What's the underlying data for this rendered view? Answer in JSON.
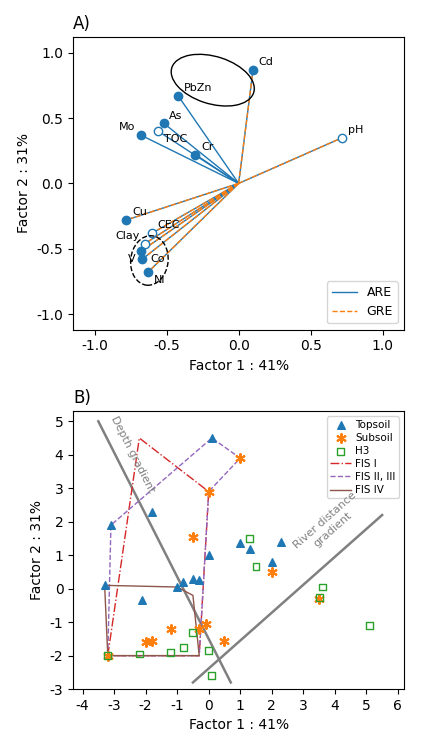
{
  "chart_data": [
    {
      "type": "biplot",
      "title": "A)",
      "xlabel": "Factor 1 : 41%",
      "ylabel": "Factor 2 : 31%",
      "xlim": [
        -1.15,
        1.15
      ],
      "ylim": [
        -1.12,
        1.12
      ],
      "xticks": [
        -1.0,
        -0.5,
        0.0,
        0.5,
        1.0
      ],
      "yticks": [
        -1.0,
        -0.5,
        0.0,
        0.5,
        1.0
      ],
      "legend": "lower right",
      "series": [
        {
          "name": "ARE",
          "type": "vector",
          "line_style": "solid",
          "marker": "circle",
          "labels": [
            "Cd",
            "PbZn",
            "As",
            "Mo",
            "TOC",
            "Cr",
            "pH",
            "Cu",
            "CEC",
            "Clay",
            "V",
            "Co",
            "Ni"
          ],
          "x": [
            0.1,
            -0.42,
            -0.52,
            -0.68,
            -0.56,
            -0.3,
            0.72,
            -0.78,
            -0.6,
            -0.65,
            -0.68,
            -0.67,
            -0.63
          ],
          "y": [
            0.87,
            0.67,
            0.46,
            0.37,
            0.4,
            0.22,
            0.35,
            -0.28,
            -0.38,
            -0.46,
            -0.52,
            -0.58,
            -0.68
          ],
          "open_markers": [
            "TOC",
            "CEC",
            "Clay",
            "pH"
          ]
        },
        {
          "name": "GRE",
          "type": "vector",
          "line_style": "dashed",
          "x": [
            0.1,
            0.72,
            -0.78,
            -0.6,
            -0.65,
            -0.68,
            -0.67,
            -0.63
          ],
          "y": [
            0.87,
            0.35,
            -0.28,
            -0.38,
            -0.46,
            -0.52,
            -0.58,
            -0.68
          ]
        }
      ],
      "ellipses": [
        {
          "x": -0.18,
          "y": 0.79,
          "width": 0.6,
          "height": 0.36,
          "angle": -20,
          "line_style": "solid"
        },
        {
          "x": -0.62,
          "y": -0.59,
          "width": 0.26,
          "height": 0.38,
          "angle": -5,
          "line_style": "dashed"
        }
      ]
    },
    {
      "type": "scatter",
      "title": "B)",
      "xlabel": "Factor 1 : 41%",
      "ylabel": "Factor 2 : 31%",
      "xlim": [
        -4.3,
        6.2
      ],
      "ylim": [
        -3.0,
        5.3
      ],
      "xticks": [
        -4,
        -3,
        -2,
        -1,
        0,
        1,
        2,
        3,
        4,
        5,
        6
      ],
      "yticks": [
        -3,
        -2,
        -1,
        0,
        1,
        2,
        3,
        4,
        5
      ],
      "legend": "upper right",
      "series": [
        {
          "name": "Topsoil",
          "type": "scatter",
          "marker": "triangle",
          "x": [
            -3.3,
            -3.1,
            -2.1,
            -1.8,
            -1.0,
            -0.8,
            -0.5,
            -0.3,
            0.0,
            0.1,
            1.0,
            1.3,
            2.0,
            2.3
          ],
          "y": [
            0.1,
            1.9,
            -0.35,
            2.3,
            0.05,
            0.2,
            0.3,
            0.25,
            1.0,
            4.5,
            1.35,
            1.2,
            0.8,
            1.4
          ]
        },
        {
          "name": "Subsoil",
          "type": "scatter",
          "marker": "asterisk",
          "x": [
            -3.2,
            -2.0,
            -1.8,
            -1.2,
            -0.5,
            -0.3,
            -0.1,
            0.0,
            0.5,
            1.0,
            2.0,
            3.5
          ],
          "y": [
            -2.0,
            -1.6,
            -1.55,
            -1.2,
            1.55,
            -1.2,
            -1.05,
            2.9,
            -1.55,
            3.9,
            0.5,
            -0.3
          ]
        },
        {
          "name": "H3",
          "type": "scatter",
          "marker": "open_square",
          "x": [
            -3.2,
            -2.2,
            -1.2,
            -0.8,
            -0.5,
            0.0,
            0.1,
            1.3,
            1.5,
            3.5,
            3.6,
            5.1
          ],
          "y": [
            -2.0,
            -1.95,
            -1.9,
            -1.75,
            -1.3,
            -1.85,
            -2.6,
            1.5,
            0.65,
            -0.25,
            0.05,
            -1.1
          ]
        },
        {
          "name": "FIS I",
          "type": "polygon",
          "line_style": "dashdot",
          "x": [
            -3.2,
            -2.2,
            0.0,
            -0.3
          ],
          "y": [
            -2.0,
            4.5,
            2.9,
            -2.0
          ]
        },
        {
          "name": "FIS II, III",
          "type": "polygon",
          "line_style": "dashed",
          "x": [
            -3.2,
            -3.1,
            0.1,
            1.0,
            0.0,
            -0.3
          ],
          "y": [
            -2.0,
            1.9,
            4.5,
            3.9,
            2.9,
            -2.0
          ]
        },
        {
          "name": "FIS IV",
          "type": "polygon",
          "line_style": "solid",
          "x": [
            -3.2,
            -3.3,
            -1.0,
            -0.5,
            -0.3
          ],
          "y": [
            -2.0,
            0.1,
            0.05,
            -0.2,
            -2.0
          ]
        }
      ],
      "gradients": [
        {
          "text": "Depth gradient",
          "color": "gray",
          "x": [
            -3.5,
            0.7
          ],
          "y": [
            5.0,
            -2.8
          ],
          "label_x": -2.4,
          "label_y": 4.0
        },
        {
          "text": "River distance\ngradient",
          "color": "gray",
          "x": [
            -0.5,
            5.5
          ],
          "y": [
            -2.8,
            2.2
          ],
          "label_x": 3.8,
          "label_y": 1.9
        }
      ]
    }
  ]
}
